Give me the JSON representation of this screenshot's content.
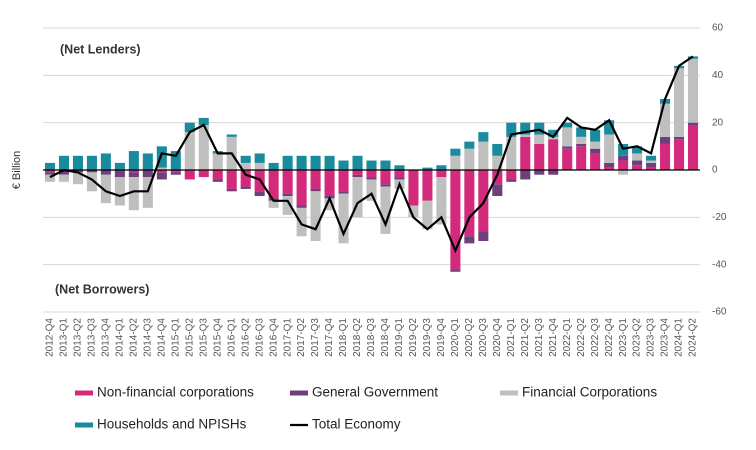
{
  "chart_data": {
    "type": "bar",
    "stacked": true,
    "ylabel": "€ Billion",
    "annotations": [
      "(Net Lenders)",
      "(Net Borrowers)"
    ],
    "categories": [
      "2012-Q4",
      "2013-Q1",
      "2013-Q2",
      "2013-Q3",
      "2013-Q4",
      "2014-Q1",
      "2014-Q2",
      "2014-Q3",
      "2014-Q4",
      "2015-Q1",
      "2015-Q2",
      "2015-Q3",
      "2015-Q4",
      "2016-Q1",
      "2016-Q2",
      "2016-Q3",
      "2016-Q4",
      "2017-Q1",
      "2017-Q2",
      "2017-Q3",
      "2017-Q4",
      "2018-Q1",
      "2018-Q2",
      "2018-Q3",
      "2018-Q4",
      "2019-Q1",
      "2019-Q2",
      "2019-Q3",
      "2019-Q4",
      "2020-Q1",
      "2020-Q2",
      "2020-Q3",
      "2020-Q4",
      "2021-Q1",
      "2021-Q2",
      "2021-Q3",
      "2021-Q4",
      "2022-Q1",
      "2022-Q2",
      "2022-Q3",
      "2022-Q4",
      "2023-Q1",
      "2023-Q2",
      "2023-Q3",
      "2023-Q4",
      "2024-Q1",
      "2024-Q2"
    ],
    "series": [
      {
        "name": "Non-financial corporations",
        "color": "#d42a7c",
        "values": [
          -1,
          0,
          0,
          0,
          0,
          0,
          -1,
          0,
          -1,
          -1,
          -4,
          -3,
          -4,
          -8,
          -7,
          -9,
          -12,
          -10,
          -15,
          -8,
          -11,
          -9,
          -2,
          -3,
          -6,
          -3,
          -15,
          -13,
          -3,
          -42,
          -28,
          -26,
          -6,
          -4,
          14,
          11,
          13,
          9,
          10,
          7,
          1,
          4,
          2,
          1,
          11,
          13,
          19
        ]
      },
      {
        "name": "General Government",
        "color": "#6e3f7c",
        "values": [
          -1,
          -2,
          -1,
          -1,
          -2,
          -3,
          -2,
          -3,
          -3,
          -1,
          0,
          0,
          -1,
          -1,
          -1,
          -2,
          -1,
          -1,
          -1,
          -1,
          -1,
          -1,
          -1,
          -1,
          -1,
          -1,
          0,
          0,
          0,
          -1,
          -3,
          -4,
          -5,
          -1,
          -4,
          -2,
          -2,
          1,
          1,
          2,
          2,
          2,
          2,
          2,
          3,
          1,
          1
        ]
      },
      {
        "name": "Financial Corporations",
        "color": "#bfbfbf",
        "values": [
          -3,
          -3,
          -5,
          -8,
          -12,
          -12,
          -14,
          -13,
          1,
          0,
          16,
          19,
          7,
          14,
          3,
          3,
          -3,
          -8,
          -12,
          -21,
          -5,
          -21,
          -17,
          -9,
          -20,
          -4,
          -5,
          -12,
          -20,
          6,
          9,
          12,
          6,
          14,
          1,
          4,
          1,
          8,
          3,
          3,
          12,
          -2,
          3,
          1,
          14,
          29,
          27
        ]
      },
      {
        "name": "Households and NPISHs",
        "color": "#1a8b9d",
        "values": [
          3,
          6,
          6,
          6,
          7,
          3,
          8,
          7,
          9,
          8,
          4,
          3,
          1,
          1,
          3,
          4,
          3,
          6,
          6,
          6,
          6,
          4,
          6,
          4,
          4,
          2,
          0,
          1,
          2,
          3,
          3,
          4,
          5,
          6,
          5,
          5,
          3,
          2,
          4,
          5,
          6,
          5,
          3,
          2,
          2,
          1,
          1
        ]
      },
      {
        "name": "Total Economy",
        "color": "#000000",
        "type": "line",
        "values": [
          -3,
          0,
          -1,
          -4,
          -9,
          -11,
          -9,
          -9,
          7,
          6,
          16,
          19,
          7,
          7,
          -2,
          -4,
          -13,
          -13,
          -23,
          -25,
          -12,
          -27,
          -14,
          -10,
          -23,
          -6,
          -20,
          -25,
          -20,
          -34,
          -20,
          -14,
          -2,
          15,
          16,
          17,
          14,
          22,
          18,
          17,
          21,
          9,
          10,
          7,
          30,
          44,
          48
        ]
      }
    ],
    "ylim": [
      -60,
      60
    ],
    "yticks": [
      -60,
      -40,
      -20,
      0,
      20,
      40,
      60
    ],
    "grid": true
  }
}
